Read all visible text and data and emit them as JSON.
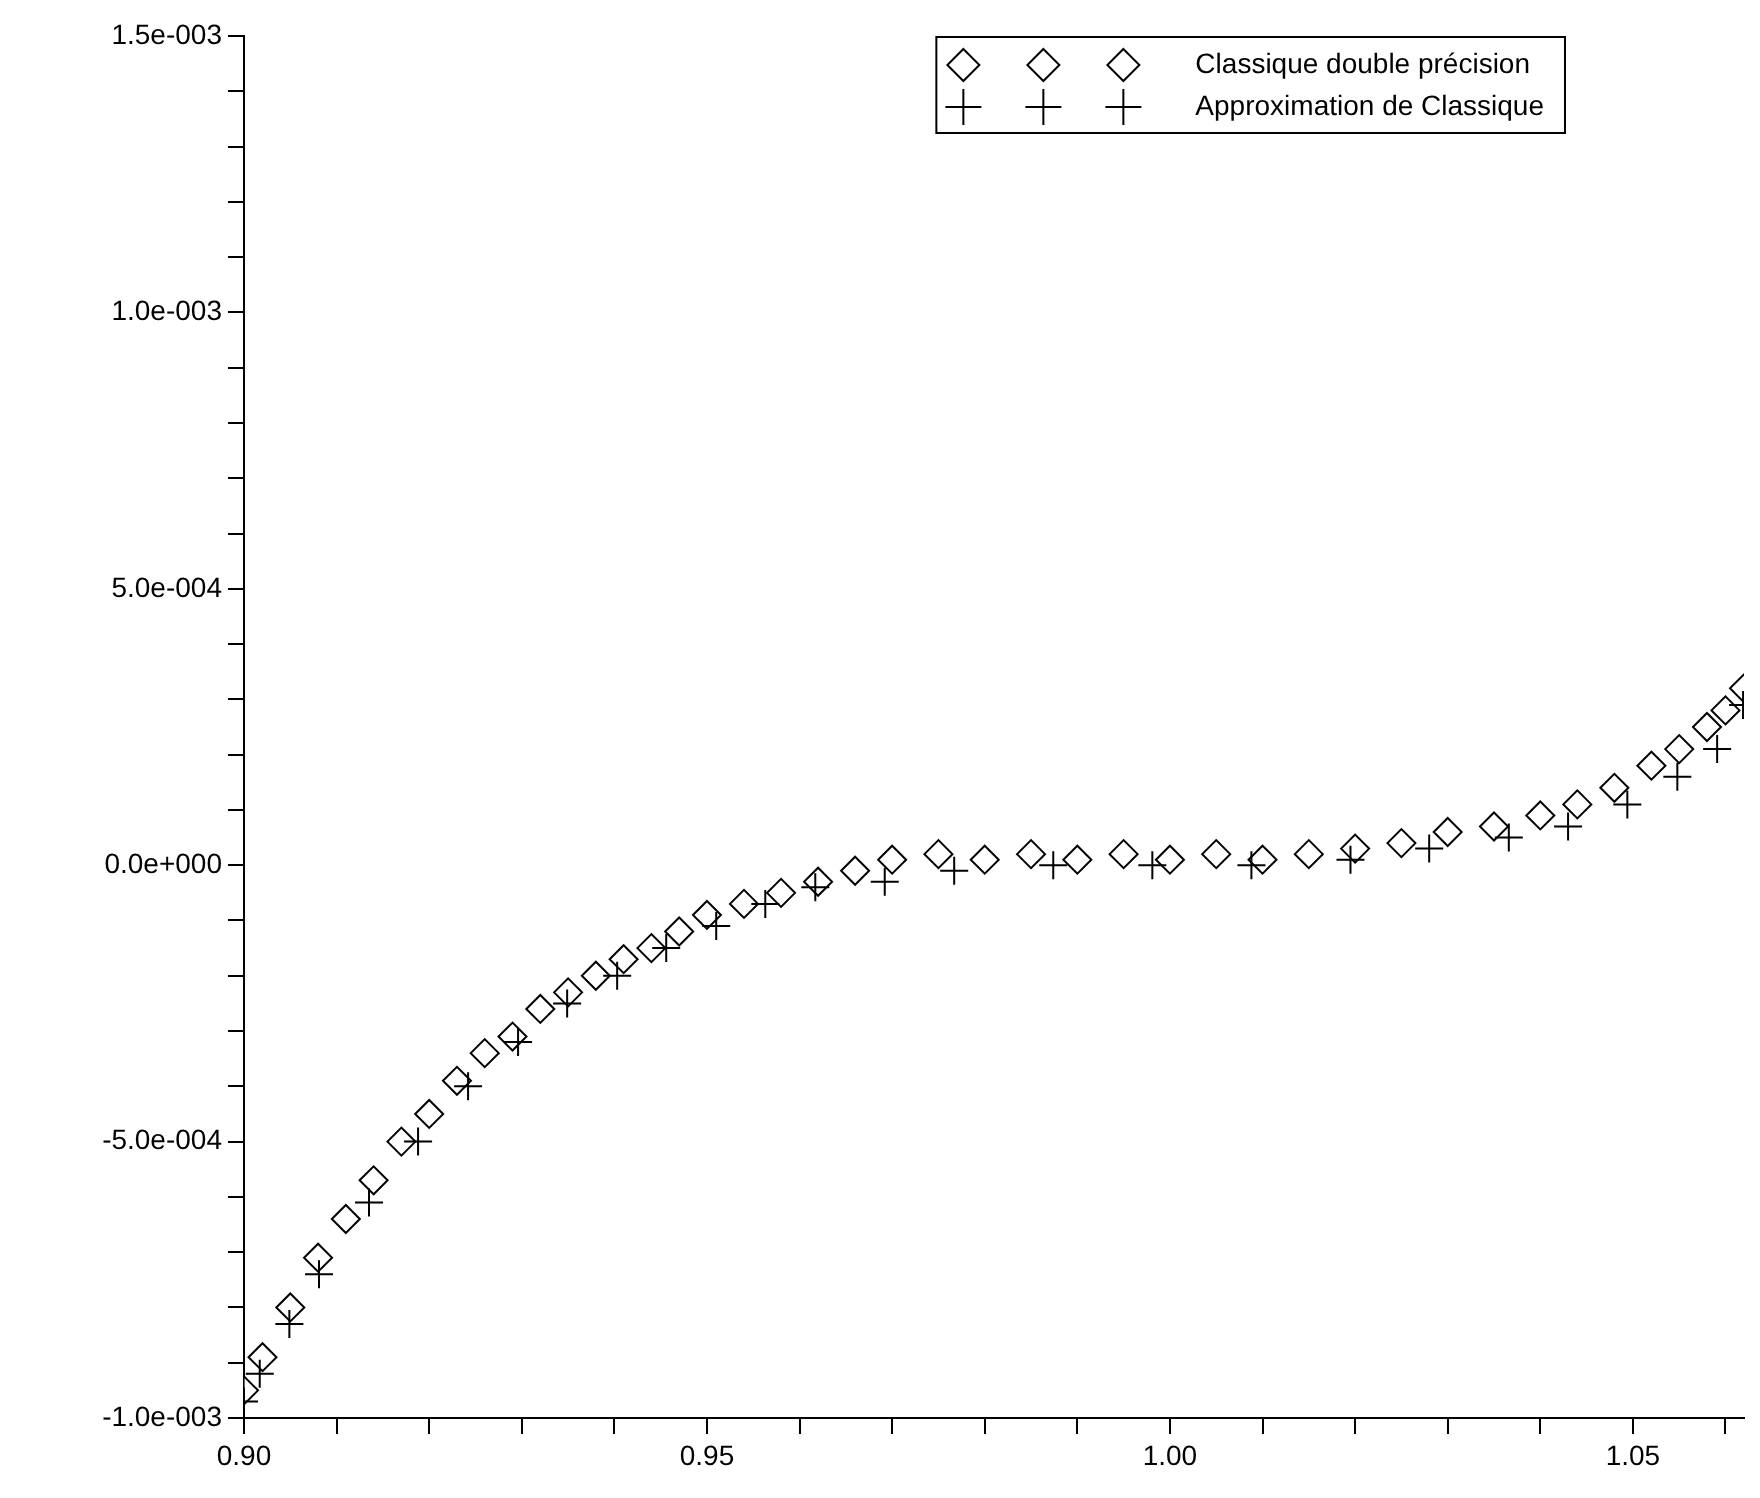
{
  "chart_data": {
    "type": "scatter",
    "xlim": [
      0.9,
      1.062
    ],
    "xticks": [
      {
        "value": 0.9,
        "label": "0.90"
      },
      {
        "value": 0.91,
        "label": null
      },
      {
        "value": 0.92,
        "label": null
      },
      {
        "value": 0.93,
        "label": null
      },
      {
        "value": 0.94,
        "label": null
      },
      {
        "value": 0.95,
        "label": "0.95"
      },
      {
        "value": 0.96,
        "label": null
      },
      {
        "value": 0.97,
        "label": null
      },
      {
        "value": 0.98,
        "label": null
      },
      {
        "value": 0.99,
        "label": null
      },
      {
        "value": 1.0,
        "label": "1.00"
      },
      {
        "value": 1.01,
        "label": null
      },
      {
        "value": 1.02,
        "label": null
      },
      {
        "value": 1.03,
        "label": null
      },
      {
        "value": 1.04,
        "label": null
      },
      {
        "value": 1.05,
        "label": "1.05"
      },
      {
        "value": 1.06,
        "label": null
      }
    ],
    "ylim": [
      -0.001,
      0.0015
    ],
    "yticks": [
      {
        "value": -0.001,
        "label": "-1.0e-003"
      },
      {
        "value": -0.0009,
        "label": null
      },
      {
        "value": -0.0008,
        "label": null
      },
      {
        "value": -0.0007,
        "label": null
      },
      {
        "value": -0.0006,
        "label": null
      },
      {
        "value": -0.0005,
        "label": "-5.0e-004"
      },
      {
        "value": -0.0004,
        "label": null
      },
      {
        "value": -0.0003,
        "label": null
      },
      {
        "value": -0.0002,
        "label": null
      },
      {
        "value": -0.0001,
        "label": null
      },
      {
        "value": 0,
        "label": "0.0e+000"
      },
      {
        "value": 0.0001,
        "label": null
      },
      {
        "value": 0.0002,
        "label": null
      },
      {
        "value": 0.0003,
        "label": null
      },
      {
        "value": 0.0004,
        "label": null
      },
      {
        "value": 0.0005,
        "label": "5.0e-004"
      },
      {
        "value": 0.0006,
        "label": null
      },
      {
        "value": 0.0007,
        "label": null
      },
      {
        "value": 0.0008,
        "label": null
      },
      {
        "value": 0.0009,
        "label": null
      },
      {
        "value": 0.001,
        "label": "1.0e-003"
      },
      {
        "value": 0.0011,
        "label": null
      },
      {
        "value": 0.0012,
        "label": null
      },
      {
        "value": 0.0013,
        "label": null
      },
      {
        "value": 0.0014,
        "label": null
      },
      {
        "value": 0.0015,
        "label": "1.5e-003"
      }
    ],
    "grid": false,
    "legend": "top right",
    "series": [
      {
        "name": "Classique double précision",
        "color": "#000000",
        "marker": "diamond",
        "x": [
          0.9,
          0.902,
          0.905,
          0.908,
          0.911,
          0.914,
          0.917,
          0.92,
          0.923,
          0.926,
          0.929,
          0.932,
          0.935,
          0.938,
          0.941,
          0.944,
          0.947,
          0.95,
          0.954,
          0.958,
          0.962,
          0.966,
          0.97,
          0.975,
          0.98,
          0.985,
          0.99,
          0.995,
          1.0,
          1.005,
          1.01,
          1.015,
          1.02,
          1.025,
          1.03,
          1.035,
          1.04,
          1.044,
          1.048,
          1.052,
          1.055,
          1.058,
          1.06,
          1.062
        ],
        "values": [
          -0.00095,
          -0.00089,
          -0.0008,
          -0.00071,
          -0.00064,
          -0.00057,
          -0.0005,
          -0.00045,
          -0.00039,
          -0.00034,
          -0.00031,
          -0.00026,
          -0.00023,
          -0.0002,
          -0.00017,
          -0.00015,
          -0.00012,
          -9e-05,
          -7e-05,
          -5e-05,
          -3e-05,
          -1e-05,
          1e-05,
          2e-05,
          1e-05,
          2e-05,
          1e-05,
          2e-05,
          1e-05,
          2e-05,
          1e-05,
          2e-05,
          3e-05,
          4e-05,
          6e-05,
          7e-05,
          9e-05,
          0.00011,
          0.00014,
          0.00018,
          0.00021,
          0.00025,
          0.00028,
          0.00032
        ]
      },
      {
        "name": "Approximation de Classique",
        "color": "#000000",
        "marker": "cross",
        "x": [
          0.9,
          0.9017,
          0.9049,
          0.9081,
          0.9135,
          0.9188,
          0.9242,
          0.9296,
          0.9349,
          0.9403,
          0.9456,
          0.951,
          0.9563,
          0.9617,
          0.9692,
          0.9767,
          0.9874,
          0.9981,
          1.0088,
          1.0195,
          1.028,
          1.0366,
          1.043,
          1.0494,
          1.0548,
          1.0591,
          1.0619
        ],
        "values": [
          -0.00097,
          -0.00092,
          -0.00083,
          -0.00074,
          -0.00061,
          -0.0005,
          -0.0004,
          -0.00032,
          -0.00025,
          -0.0002,
          -0.00015,
          -0.00011,
          -7e-05,
          -4e-05,
          -3e-05,
          -1e-05,
          0,
          0,
          0,
          1e-05,
          3e-05,
          5e-05,
          7e-05,
          0.00011,
          0.00016,
          0.00021,
          0.00029
        ]
      }
    ]
  }
}
